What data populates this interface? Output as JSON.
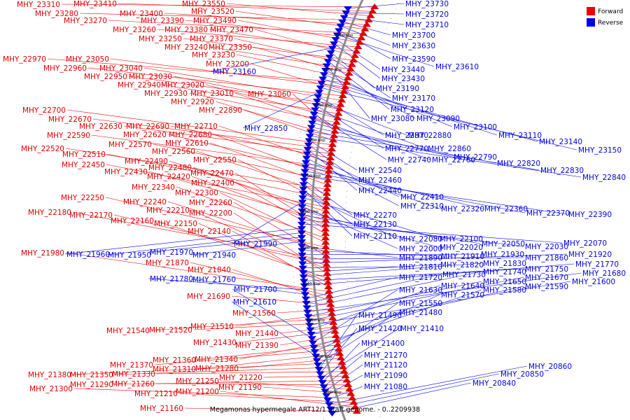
{
  "caption": "Megamonas hypermegale ART12/1 draft genome. - 0..2209938",
  "legend": {
    "forward_label": "Forward",
    "reverse_label": "Reverse",
    "forward_color": "#ee0000",
    "reverse_color": "#0000ee"
  },
  "kbp_marks": [
    "1780 kbp",
    "1760 kbp",
    "1740 kbp",
    "1720 kbp",
    "1700 kbp",
    "1680 kbp",
    "1660 kbp",
    "1640 kbp",
    "1620 kbp",
    "1600 kbp",
    "1580 kbp"
  ],
  "forward_genes": [
    "MHY_23310",
    "MHY_23410",
    "MHY_23550",
    "MHY_23280",
    "MHY_23400",
    "MHY_23520",
    "MHY_23270",
    "MHY_23390",
    "MHY_23490",
    "MHY_23260",
    "MHY_23380",
    "MHY_23470",
    "MHY_23250",
    "MHY_23370",
    "MHY_23240",
    "MHY_23350",
    "MHY_23230",
    "MHY_22970",
    "MHY_23050",
    "MHY_23200",
    "MHY_22960",
    "MHY_23040",
    "MHY_22950",
    "MHY_23030",
    "MHY_22940",
    "MHY_23020",
    "MHY_22930",
    "MHY_23010",
    "MHY_23060",
    "MHY_22920",
    "MHY_22890",
    "MHY_22700",
    "MHY_22670",
    "MHY_22630",
    "MHY_22690",
    "MHY_22710",
    "MHY_22590",
    "MHY_22620",
    "MHY_22680",
    "MHY_22570",
    "MHY_22610",
    "MHY_22520",
    "MHY_22560",
    "MHY_22510",
    "MHY_22550",
    "MHY_22450",
    "MHY_22490",
    "MHY_22480",
    "MHY_22430",
    "MHY_22420",
    "MHY_22470",
    "MHY_22400",
    "MHY_22340",
    "MHY_22300",
    "MHY_22250",
    "MHY_22240",
    "MHY_22260",
    "MHY_22180",
    "MHY_22170",
    "MHY_22210",
    "MHY_22200",
    "MHY_22160",
    "MHY_22150",
    "MHY_22140",
    "MHY_21980",
    "MHY_21870",
    "MHY_21840",
    "MHY_21690",
    "MHY_21560",
    "MHY_21510",
    "MHY_21540",
    "MHY_21520",
    "MHY_21440",
    "MHY_21430",
    "MHY_21390",
    "MHY_21340",
    "MHY_21360",
    "MHY_21370",
    "MHY_21310",
    "MHY_21280",
    "MHY_21380",
    "MHY_21350",
    "MHY_21330",
    "MHY_21220",
    "MHY_21290",
    "MHY_21260",
    "MHY_21250",
    "MHY_21190",
    "MHY_21300",
    "MHY_21210",
    "MHY_21200",
    "MHY_21160"
  ],
  "reverse_genes": [
    "MHY_23730",
    "MHY_23720",
    "MHY_23710",
    "MHY_23700",
    "MHY_23630",
    "MHY_23590",
    "MHY_23610",
    "MHY_23440",
    "MHY_23430",
    "MHY_23160",
    "MHY_23190",
    "MHY_23170",
    "MHY_23120",
    "MHY_23080",
    "MHY_23090",
    "MHY_23100",
    "MHY_23110",
    "MHY_23140",
    "MHY_23150",
    "MHY_22850",
    "MHY_22870",
    "MHY_22880",
    "MHY_22770",
    "MHY_22860",
    "MHY_22740",
    "MHY_22760",
    "MHY_22790",
    "MHY_22820",
    "MHY_22830",
    "MHY_22840",
    "MHY_22540",
    "MHY_22460",
    "MHY_22440",
    "MHY_22410",
    "MHY_22310",
    "MHY_22320",
    "MHY_22360",
    "MHY_22370",
    "MHY_22390",
    "MHY_22270",
    "MHY_22130",
    "MHY_22110",
    "MHY_22080",
    "MHY_22100",
    "MHY_21990",
    "MHY_22000",
    "MHY_22020",
    "MHY_22050",
    "MHY_22030",
    "MHY_22070",
    "MHY_21960",
    "MHY_21950",
    "MHY_21970",
    "MHY_21940",
    "MHY_21890",
    "MHY_21910",
    "MHY_21930",
    "MHY_21860",
    "MHY_21920",
    "MHY_21810",
    "MHY_21820",
    "MHY_21830",
    "MHY_21750",
    "MHY_21770",
    "MHY_21780",
    "MHY_21760",
    "MHY_21720",
    "MHY_21730",
    "MHY_21740",
    "MHY_21680",
    "MHY_21650",
    "MHY_21670",
    "MHY_21600",
    "MHY_21640",
    "MHY_21590",
    "MHY_21700",
    "MHY_21630",
    "MHY_21580",
    "MHY_21570",
    "MHY_21610",
    "MHY_21550",
    "MHY_21480",
    "MHY_21490",
    "MHY_21420",
    "MHY_21410",
    "MHY_21400",
    "MHY_21270",
    "MHY_21120",
    "MHY_21090",
    "MHY_21080",
    "MHY_20860",
    "MHY_20850",
    "MHY_20840"
  ]
}
